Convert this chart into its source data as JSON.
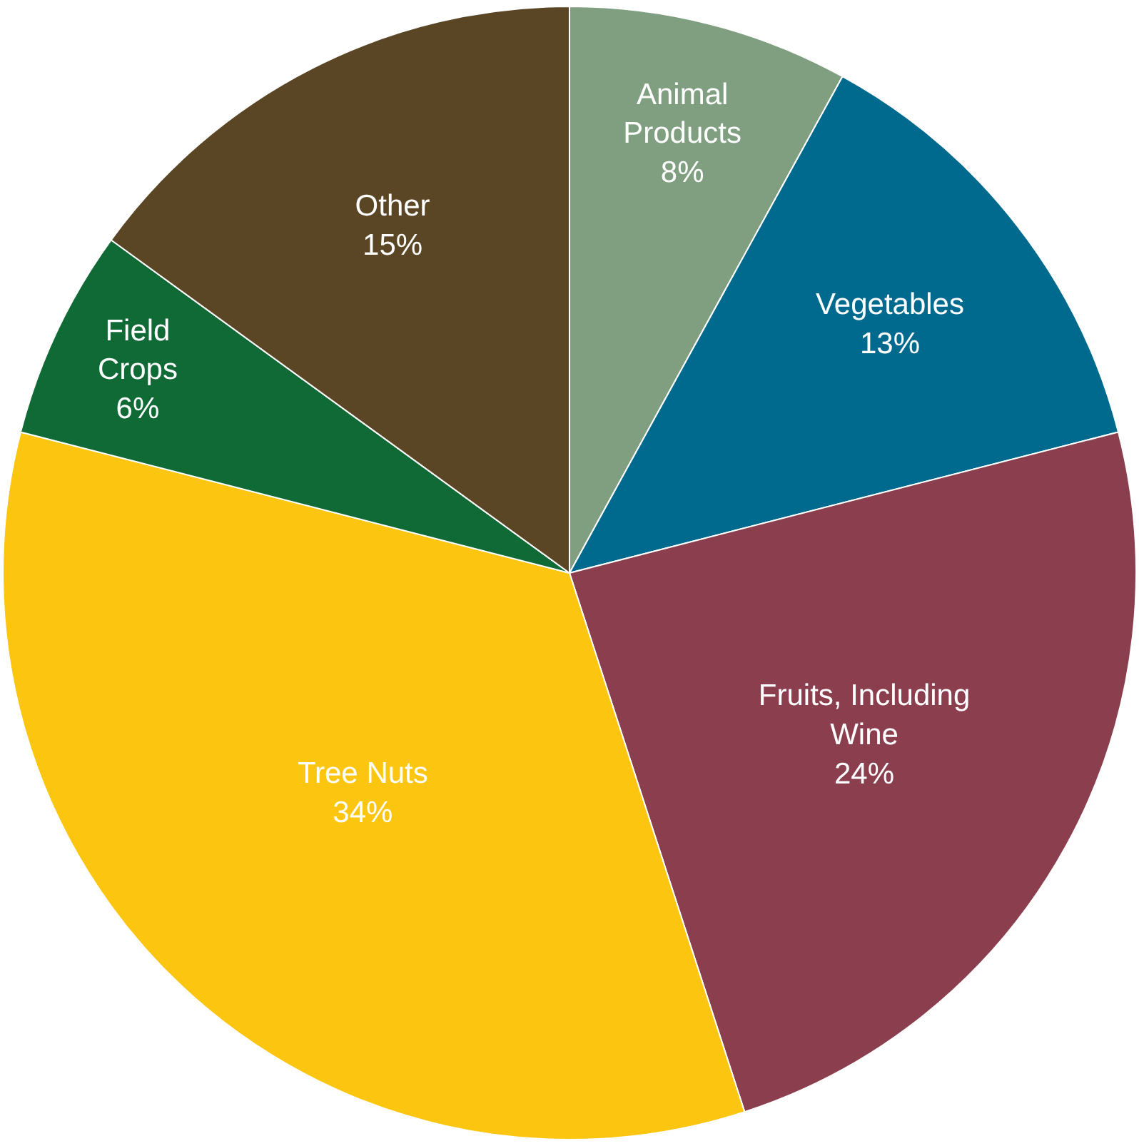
{
  "chart_data": {
    "type": "pie",
    "categories": [
      "Animal\nProducts",
      "Vegetables",
      "Fruits, Including\nWine",
      "Tree Nuts",
      "Field\nCrops",
      "Other"
    ],
    "values": [
      8,
      13,
      24,
      34,
      6,
      15
    ],
    "value_labels": [
      "8%",
      "13%",
      "24%",
      "34%",
      "6%",
      "15%"
    ],
    "colors": [
      "#7f9f80",
      "#006a8e",
      "#8b3f4e",
      "#fcc50f",
      "#0f6a36",
      "#5a4524"
    ],
    "legend": false
  }
}
